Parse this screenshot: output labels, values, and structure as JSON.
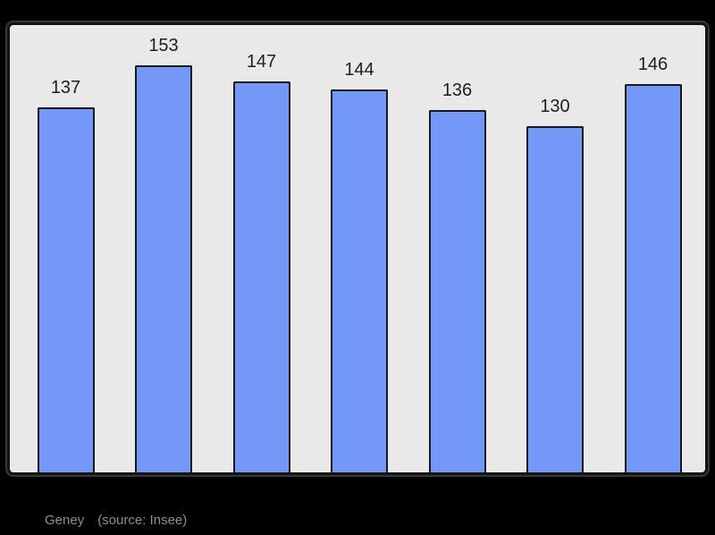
{
  "page": {
    "background_color": "#000000"
  },
  "chart_data": {
    "type": "bar",
    "title": "",
    "xlabel": "",
    "ylabel": "",
    "values": [
      137,
      153,
      147,
      144,
      136,
      130,
      146
    ],
    "bar_labels": [
      "137",
      "153",
      "147",
      "144",
      "136",
      "130",
      "146"
    ],
    "categories": [
      "",
      "",
      "",
      "",
      "",
      "",
      ""
    ],
    "ylim": [
      0,
      168
    ],
    "grid": false,
    "legend": false,
    "axes_visible": false,
    "bar_color": "#7398f8",
    "bar_border_color": "#1a1a1a",
    "value_label_color": "#1e1e1e",
    "plot_background_color": "#e9e9e9",
    "plot_border_color": "#141414"
  },
  "caption": {
    "place": "Geney",
    "source": "(source: Insee)",
    "color": "#8f8f8f"
  }
}
